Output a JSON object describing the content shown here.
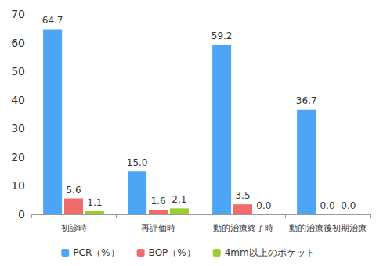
{
  "chart_data": {
    "type": "bar",
    "categories": [
      "初診時",
      "再評価時",
      "動的治療終了時",
      "動的治療後初期治療"
    ],
    "series": [
      {
        "name": "PCR（%）",
        "color": "#4da6f5",
        "values": [
          64.7,
          15.0,
          59.2,
          36.7
        ],
        "value_labels": [
          "64.7",
          "15.0",
          "59.2",
          "36.7"
        ]
      },
      {
        "name": "BOP（%）",
        "color": "#f26b6b",
        "values": [
          5.6,
          1.6,
          3.5,
          0
        ],
        "value_labels": [
          "5.6",
          "1.6",
          "3.5",
          "0.0"
        ]
      },
      {
        "name": "4mm以上のポケット",
        "color": "#9acd32",
        "values": [
          1.1,
          2.1,
          0,
          0
        ],
        "value_labels": [
          "1.1",
          "2.1",
          "0.0",
          "0.0"
        ]
      }
    ],
    "ylim": [
      0,
      70
    ],
    "yticks": [
      0,
      10,
      20,
      30,
      40,
      50,
      60,
      70
    ],
    "grid": false,
    "legend": "bottom",
    "data_labels": true
  }
}
